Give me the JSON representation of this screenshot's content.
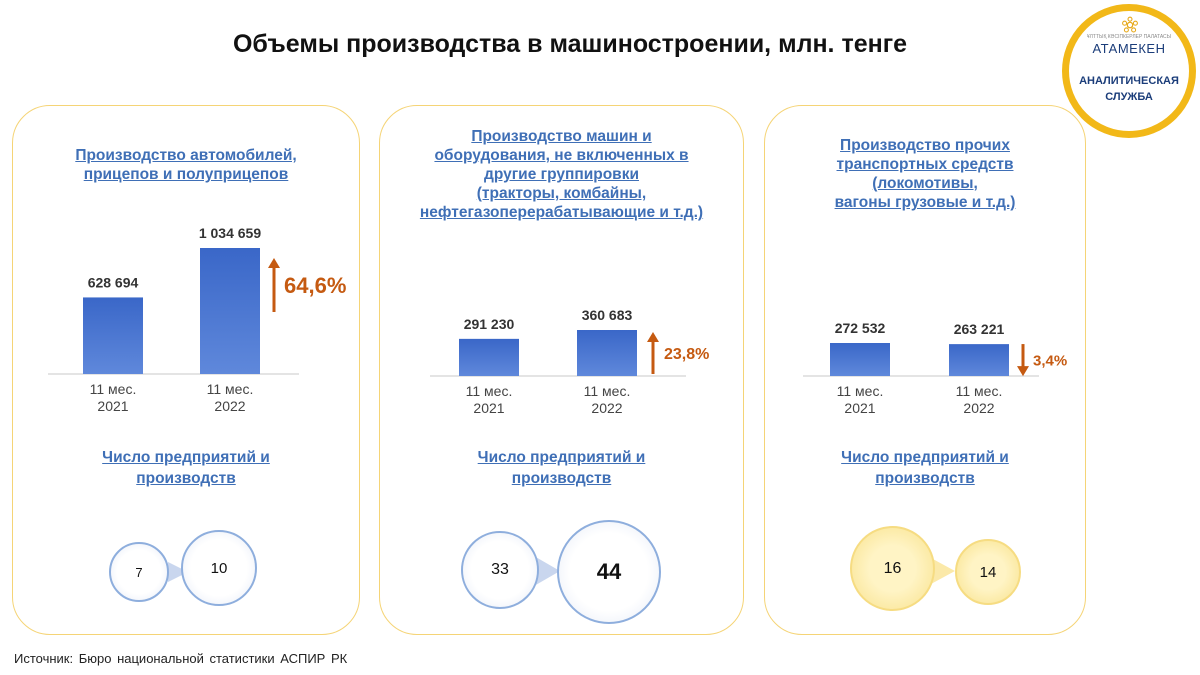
{
  "title": "Объемы производства в машиностроении, млн. тенге",
  "logo": {
    "small_text": "ҰЛТТЫҚ КӘСІПКЕРЛЕР ПАЛАТАСЫ",
    "brand": "АТАМЕКЕН",
    "service_line1": "АНАЛИТИЧЕСКАЯ",
    "service_line2": "СЛУЖБА"
  },
  "colors": {
    "bar": "#3a67c8",
    "bar_light": "#5f88db",
    "arrow": "#c55a11",
    "panel_border": "#f5d476",
    "link": "#3f6fb6"
  },
  "chart_data": [
    {
      "type": "bar",
      "title_lines": [
        "Производство автомобилей,",
        "прицепов и полуприцепов"
      ],
      "categories": [
        "11 мес. 2021",
        "11 мес. 2022"
      ],
      "category_lines": [
        [
          "11 мес.",
          "2021"
        ],
        [
          "11 мес.",
          "2022"
        ]
      ],
      "values": [
        628694,
        1034659
      ],
      "value_labels": [
        "628 694",
        "1 034 659"
      ],
      "change": {
        "direction": "up",
        "label": "64,6%"
      }
    },
    {
      "type": "bar",
      "title_lines": [
        "Производство машин и",
        "оборудования, не включенных в",
        "другие группировки",
        "(тракторы, комбайны,",
        "нефтегазоперерабатывающие и т.д.)"
      ],
      "categories": [
        "11 мес. 2021",
        "11 мес. 2022"
      ],
      "category_lines": [
        [
          "11 мес.",
          "2021"
        ],
        [
          "11 мес.",
          "2022"
        ]
      ],
      "values": [
        291230,
        360683
      ],
      "value_labels": [
        "291 230",
        "360 683"
      ],
      "change": {
        "direction": "up",
        "label": "23,8%"
      }
    },
    {
      "type": "bar",
      "title_lines": [
        "Производство прочих",
        "транспортных средств",
        "(локомотивы,",
        "вагоны грузовые и т.д.)"
      ],
      "categories": [
        "11 мес. 2021",
        "11 мес. 2022"
      ],
      "category_lines": [
        [
          "11 мес.",
          "2021"
        ],
        [
          "11 мес.",
          "2022"
        ]
      ],
      "values": [
        272532,
        263221
      ],
      "value_labels": [
        "272 532",
        "263 221"
      ],
      "change": {
        "direction": "down",
        "label": "3,4%"
      }
    }
  ],
  "enterprises": [
    {
      "title_lines": [
        "Число предприятий и",
        "производств"
      ],
      "values": [
        "7",
        "10"
      ]
    },
    {
      "title_lines": [
        "Число предприятий и",
        "производств"
      ],
      "values": [
        "33",
        "44"
      ]
    },
    {
      "title_lines": [
        "Число предприятий и",
        "производств"
      ],
      "values": [
        "16",
        "14"
      ]
    }
  ],
  "source": "Источник: Бюро национальной статистики АСПИР РК"
}
